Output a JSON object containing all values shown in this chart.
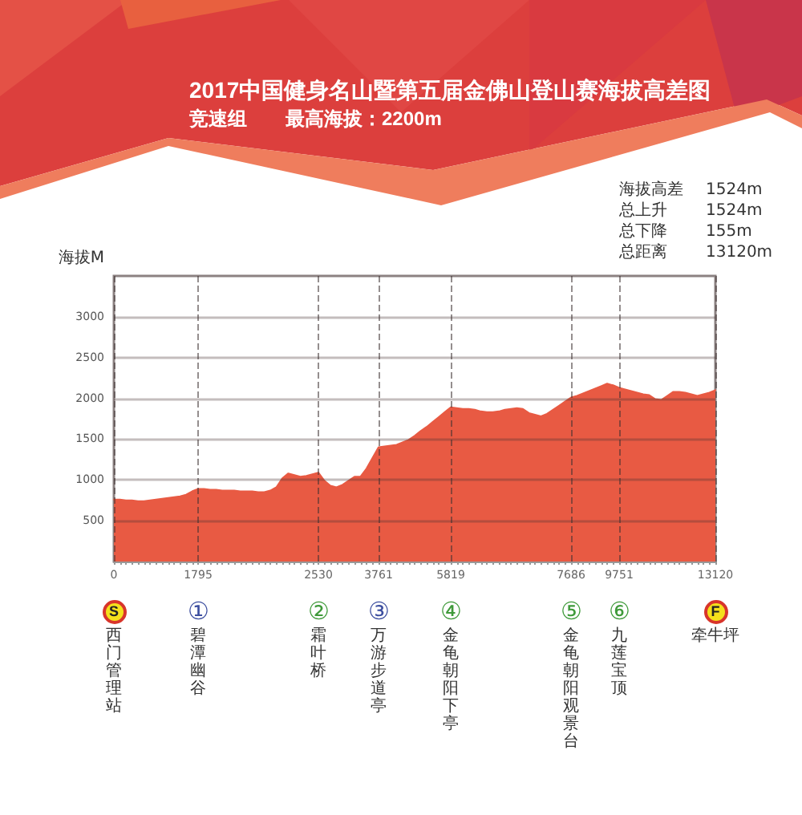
{
  "chart_data": {
    "type": "area",
    "title": "2017中国健身名山暨第五届金佛山登山赛海拔高差图",
    "subtitle": "竞速组　　最高海拔：2200m",
    "ylabel": "海拔M",
    "categories": [
      "0",
      null,
      null,
      null,
      null,
      null,
      null,
      null,
      null,
      null,
      null,
      null,
      null,
      null,
      "1795",
      null,
      null,
      null,
      null,
      null,
      null,
      null,
      null,
      null,
      null,
      null,
      null,
      null,
      null,
      null,
      null,
      null,
      null,
      null,
      "2530",
      null,
      null,
      null,
      null,
      null,
      null,
      null,
      null,
      null,
      "3761",
      null,
      null,
      null,
      null,
      null,
      null,
      null,
      null,
      null,
      null,
      null,
      "5819",
      null,
      null,
      null,
      null,
      null,
      null,
      null,
      null,
      null,
      null,
      null,
      null,
      null,
      null,
      null,
      null,
      null,
      null,
      null,
      "7686",
      null,
      null,
      null,
      null,
      null,
      null,
      null,
      "9751",
      null,
      null,
      null,
      null,
      null,
      null,
      null,
      null,
      null,
      null,
      null,
      null,
      null,
      null,
      null,
      "13120"
    ],
    "values": [
      760,
      760,
      750,
      750,
      740,
      740,
      750,
      760,
      770,
      780,
      790,
      800,
      820,
      860,
      890,
      890,
      880,
      880,
      870,
      870,
      870,
      860,
      860,
      860,
      850,
      850,
      870,
      910,
      1020,
      1080,
      1060,
      1040,
      1050,
      1070,
      1090,
      990,
      930,
      910,
      940,
      990,
      1040,
      1040,
      1140,
      1270,
      1400,
      1410,
      1420,
      1430,
      1460,
      1490,
      1540,
      1600,
      1650,
      1710,
      1770,
      1830,
      1890,
      1880,
      1870,
      1870,
      1860,
      1840,
      1830,
      1830,
      1840,
      1860,
      1870,
      1880,
      1870,
      1820,
      1800,
      1780,
      1810,
      1860,
      1910,
      1960,
      2010,
      2030,
      2060,
      2090,
      2120,
      2150,
      2180,
      2160,
      2130,
      2110,
      2090,
      2070,
      2050,
      2040,
      1990,
      1980,
      2030,
      2080,
      2080,
      2070,
      2050,
      2030,
      2050,
      2070,
      2100
    ],
    "color": "#e85a43",
    "ylim": [
      0,
      3500
    ],
    "yticks": [
      500,
      1000,
      1500,
      2000,
      2500,
      3000
    ],
    "grid": true,
    "annotations": [
      "海拔高差 1524m",
      "总上升 1524m",
      "总下降 155m",
      "总距离 13120m",
      "S",
      "西门管理站",
      "①",
      "碧潭幽谷",
      "②",
      "霜叶桥",
      "③",
      "万游步道亭",
      "④",
      "金龟朝阳下亭",
      "⑤",
      "金龟朝阳观景台",
      "⑥",
      "九莲宝顶",
      "F",
      "牵牛坪"
    ]
  }
}
